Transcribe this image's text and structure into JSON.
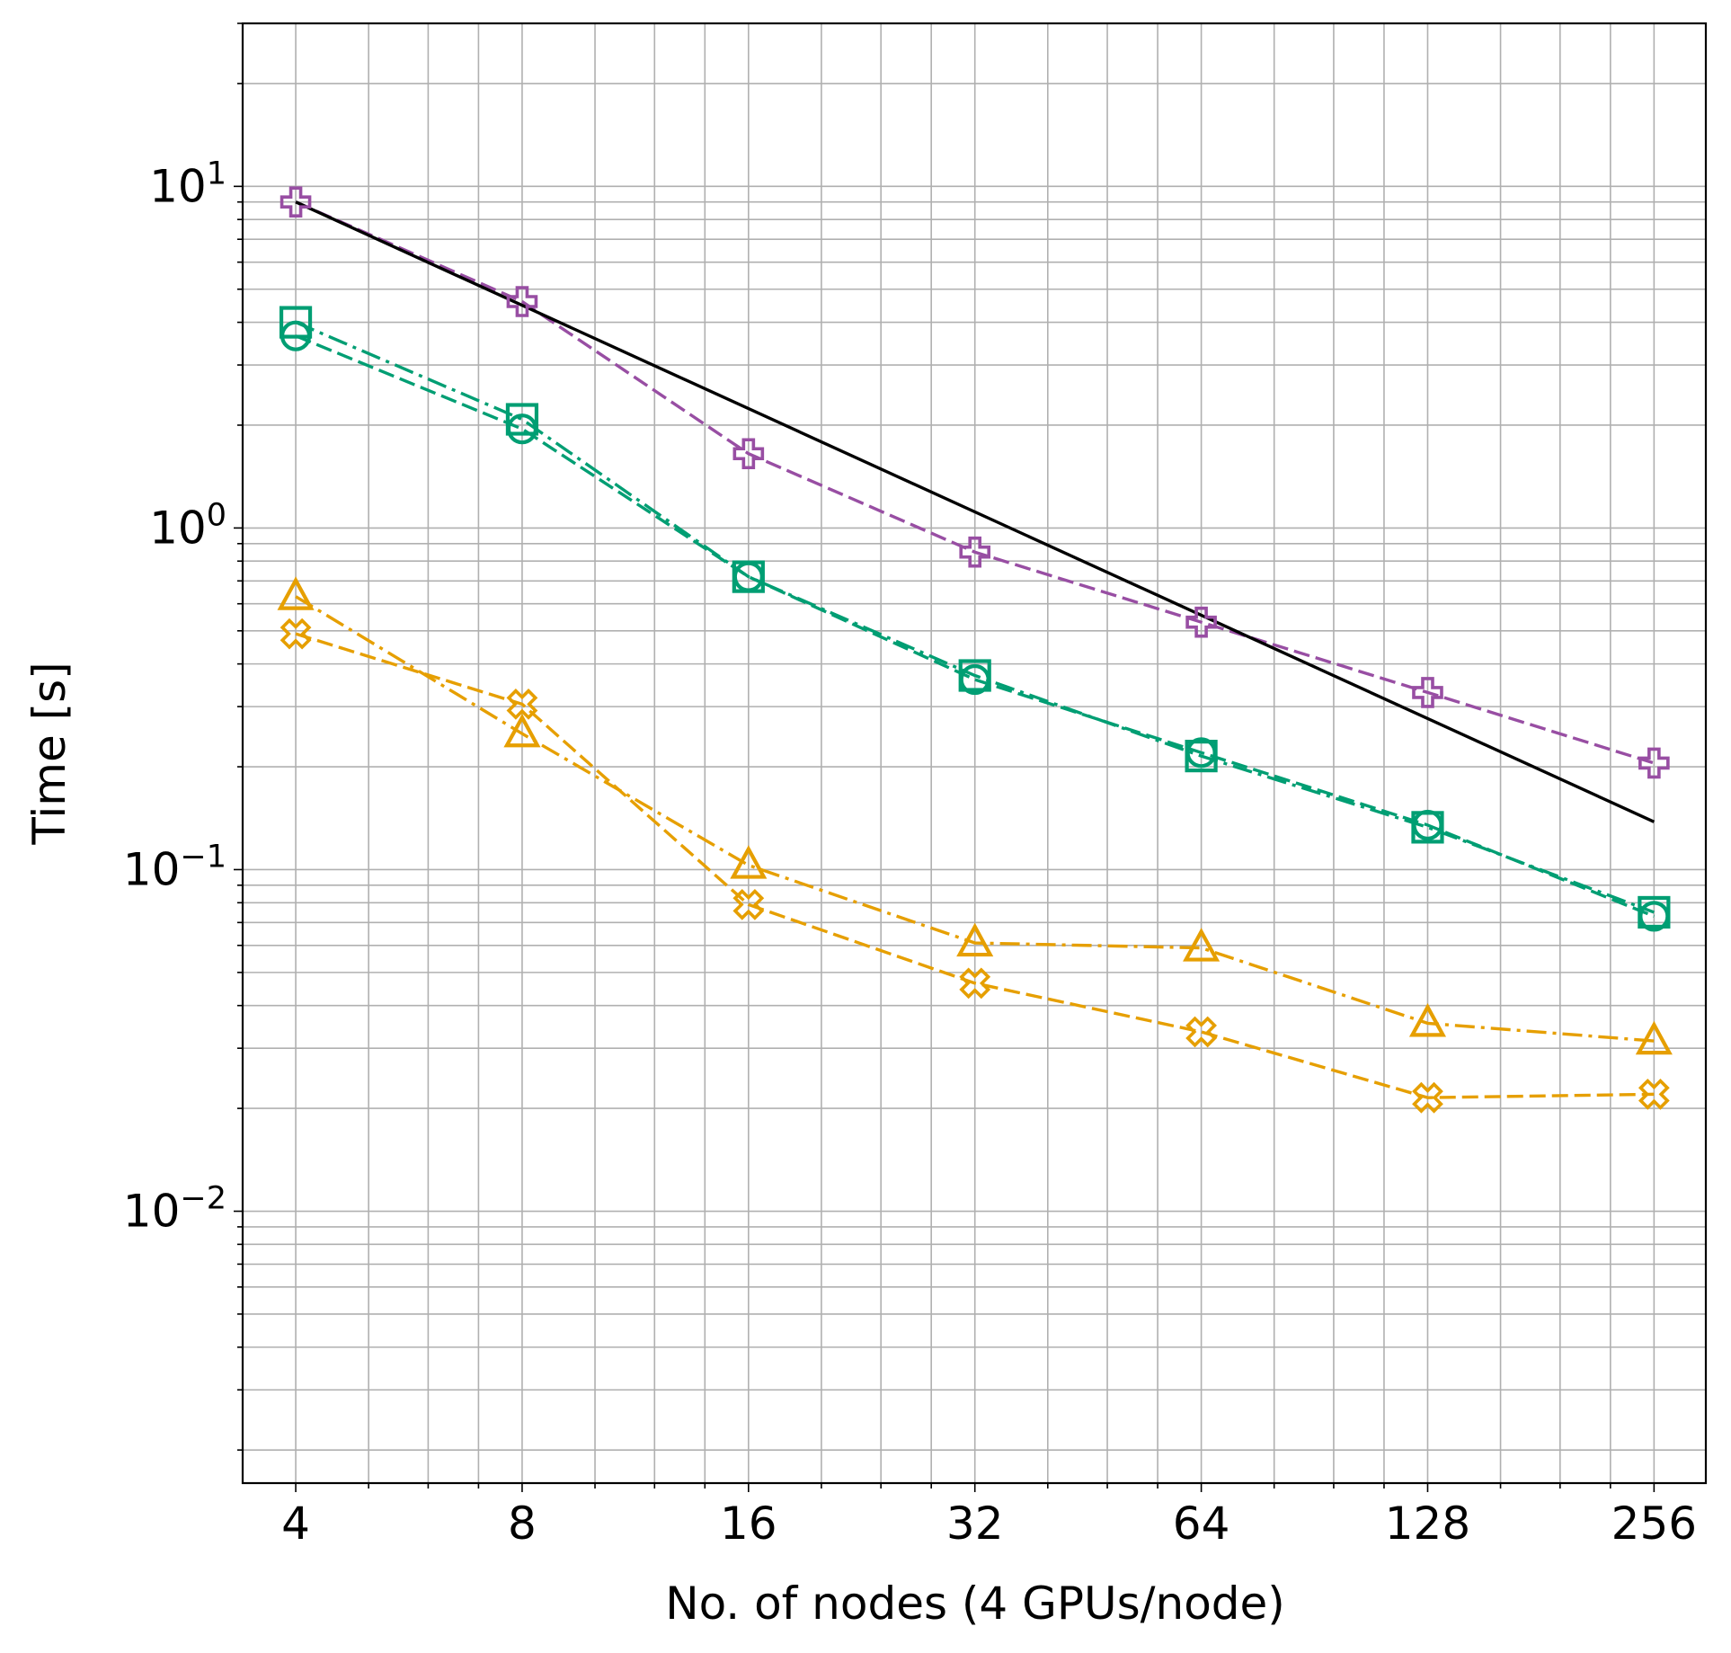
{
  "chart_data": {
    "type": "line",
    "xlabel": "No. of nodes (4 GPUs/node)",
    "ylabel": "Time [s]",
    "x_scale": "log2",
    "y_scale": "log10",
    "xlim": [
      3.4,
      300
    ],
    "ylim": [
      0.0016,
      30
    ],
    "x_ticks": [
      4,
      8,
      16,
      32,
      64,
      128,
      256
    ],
    "x_tick_labels": [
      "4",
      "8",
      "16",
      "32",
      "64",
      "128",
      "256"
    ],
    "y_ticks": [
      {
        "value": 10,
        "base": "10",
        "exp": "1"
      },
      {
        "value": 1,
        "base": "10",
        "exp": "0"
      },
      {
        "value": 0.1,
        "base": "10",
        "exp": "−1"
      },
      {
        "value": 0.01,
        "base": "10",
        "exp": "−2"
      }
    ],
    "grid": true,
    "x": [
      4,
      8,
      16,
      32,
      64,
      128,
      256
    ],
    "series": [
      {
        "color": "#984ea3",
        "marker": "plus",
        "line": "dashed",
        "values": [
          9.0,
          4.6,
          1.65,
          0.85,
          0.53,
          0.33,
          0.205
        ]
      },
      {
        "color": "#009e73",
        "marker": "square",
        "line": "dashdot",
        "values": [
          4.0,
          2.08,
          0.72,
          0.37,
          0.215,
          0.133,
          0.075
        ]
      },
      {
        "color": "#009e73",
        "marker": "circle",
        "line": "dashed",
        "values": [
          3.65,
          1.95,
          0.72,
          0.36,
          0.22,
          0.135,
          0.073
        ]
      },
      {
        "color": "#e69f00",
        "marker": "triangle",
        "line": "dashdot",
        "values": [
          0.63,
          0.25,
          0.103,
          0.061,
          0.059,
          0.0355,
          0.0315
        ]
      },
      {
        "color": "#e69f00",
        "marker": "x",
        "line": "dashed",
        "values": [
          0.49,
          0.305,
          0.079,
          0.0465,
          0.0335,
          0.0215,
          0.022
        ]
      },
      {
        "color": "#000000",
        "marker": "none",
        "line": "solid",
        "x": [
          4,
          256
        ],
        "values": [
          9.0,
          0.138
        ]
      }
    ]
  }
}
